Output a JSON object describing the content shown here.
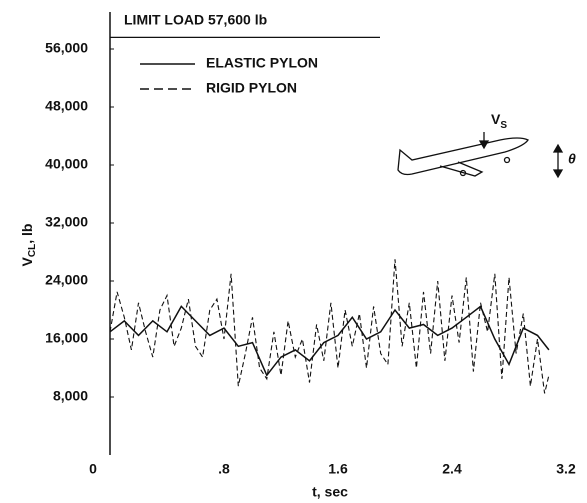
{
  "chart_data": {
    "type": "line",
    "x_label": "t, sec",
    "y_label": {
      "text": "V",
      "subscript": "CL",
      "suffix": ", lb"
    },
    "xlim": [
      0,
      3.2
    ],
    "xticks": [
      0,
      {
        "value": 0.8,
        "label": ".8"
      },
      1.6,
      2.4,
      3.2
    ],
    "ylim": [
      0,
      60000
    ],
    "yticks": [
      {
        "value": 8000,
        "label": "8,000"
      },
      {
        "value": 16000,
        "label": "16,000"
      },
      {
        "value": 24000,
        "label": "24,000"
      },
      {
        "value": 32000,
        "label": "32,000"
      },
      {
        "value": 40000,
        "label": "40,000"
      },
      {
        "value": 48000,
        "label": "48,000"
      },
      {
        "value": 56000,
        "label": "56,000"
      }
    ],
    "limit_load": {
      "value": 57600,
      "label": "LIMIT LOAD 57,600 lb"
    },
    "annotations": {
      "velocity": {
        "text": "V",
        "subscript": "S"
      },
      "angle": "θ"
    },
    "series": [
      {
        "name": "ELASTIC PYLON",
        "color": "#111111",
        "dash": "solid",
        "x": [
          0,
          0.1,
          0.2,
          0.3,
          0.4,
          0.5,
          0.6,
          0.7,
          0.8,
          0.9,
          1.0,
          1.1,
          1.2,
          1.3,
          1.4,
          1.5,
          1.6,
          1.7,
          1.8,
          1.9,
          2.0,
          2.1,
          2.2,
          2.3,
          2.4,
          2.5,
          2.6,
          2.7,
          2.8,
          2.9,
          3.0,
          3.08
        ],
        "values": [
          17000,
          18500,
          16500,
          18500,
          17000,
          20500,
          18500,
          16500,
          17500,
          15000,
          15500,
          11000,
          13500,
          14500,
          13000,
          15500,
          16500,
          19000,
          16000,
          17000,
          20000,
          17500,
          18000,
          16500,
          17500,
          19000,
          20500,
          16000,
          12500,
          17500,
          16500,
          14500
        ]
      },
      {
        "name": "RIGID PYLON",
        "color": "#111111",
        "dash": "dashed",
        "x": [
          0,
          0.05,
          0.1,
          0.15,
          0.2,
          0.25,
          0.3,
          0.35,
          0.4,
          0.45,
          0.5,
          0.55,
          0.6,
          0.65,
          0.7,
          0.75,
          0.8,
          0.85,
          0.9,
          0.95,
          1.0,
          1.05,
          1.1,
          1.15,
          1.2,
          1.25,
          1.3,
          1.35,
          1.4,
          1.45,
          1.5,
          1.55,
          1.6,
          1.65,
          1.7,
          1.75,
          1.8,
          1.85,
          1.9,
          1.95,
          2.0,
          2.05,
          2.1,
          2.15,
          2.2,
          2.25,
          2.3,
          2.35,
          2.4,
          2.45,
          2.5,
          2.55,
          2.6,
          2.65,
          2.7,
          2.75,
          2.8,
          2.85,
          2.9,
          2.95,
          3.0,
          3.05,
          3.08
        ],
        "values": [
          17000,
          22500,
          19000,
          14500,
          21000,
          17000,
          13500,
          20000,
          22000,
          15000,
          17500,
          21500,
          15000,
          13500,
          20000,
          21500,
          16000,
          25000,
          9500,
          14000,
          19000,
          12000,
          10500,
          17000,
          11000,
          18500,
          13500,
          16000,
          10000,
          18000,
          13000,
          21000,
          12000,
          20000,
          15000,
          19500,
          12000,
          20500,
          14000,
          12500,
          27000,
          15000,
          21000,
          12000,
          22500,
          14000,
          24000,
          13000,
          22000,
          15500,
          24500,
          11500,
          21000,
          17000,
          25000,
          10500,
          24500,
          14000,
          19500,
          9500,
          16000,
          8500,
          11000
        ]
      }
    ]
  }
}
